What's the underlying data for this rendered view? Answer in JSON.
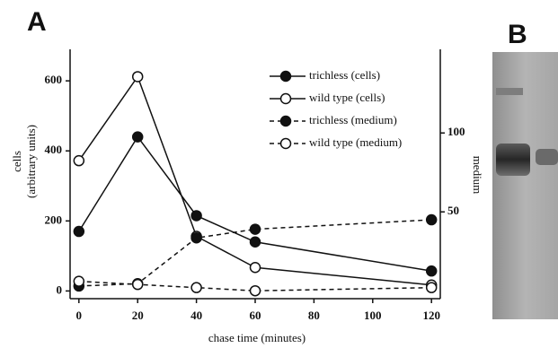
{
  "panel_labels": [
    "A",
    "B"
  ],
  "chart_data": {
    "type": "line",
    "ylabel": "cells",
    "ylabel_sub": "(arbitrary units)",
    "y2label": "medium",
    "xlabel": "chase time (minutes)",
    "x": [
      0,
      20,
      40,
      60,
      120
    ],
    "xlim": [
      -3,
      123
    ],
    "xticks": [
      0,
      20,
      40,
      60,
      80,
      100,
      120
    ],
    "ylim": [
      -22,
      690
    ],
    "yticks": [
      0,
      200,
      400,
      600
    ],
    "y2lim": [
      -5,
      153
    ],
    "y2ticks": [
      50,
      100
    ],
    "series": [
      {
        "name": "trichless (cells)",
        "color": "#111111",
        "marker": "filled",
        "dash": false,
        "values": [
          170,
          440,
          215,
          140,
          57
        ]
      },
      {
        "name": "wild type (cells)",
        "color": "#111111",
        "marker": "open",
        "dash": false,
        "values": [
          372,
          612,
          156,
          67,
          17
        ]
      },
      {
        "name": "trichless (medium)",
        "color": "#111111",
        "marker": "filled",
        "dash": true,
        "axis": "y2",
        "values": [
          3,
          4.5,
          33.5,
          39,
          45
        ]
      },
      {
        "name": "wild type (medium)",
        "color": "#111111",
        "marker": "open",
        "dash": true,
        "axis": "y2",
        "values": [
          6,
          4,
          2,
          0,
          2
        ]
      }
    ]
  }
}
